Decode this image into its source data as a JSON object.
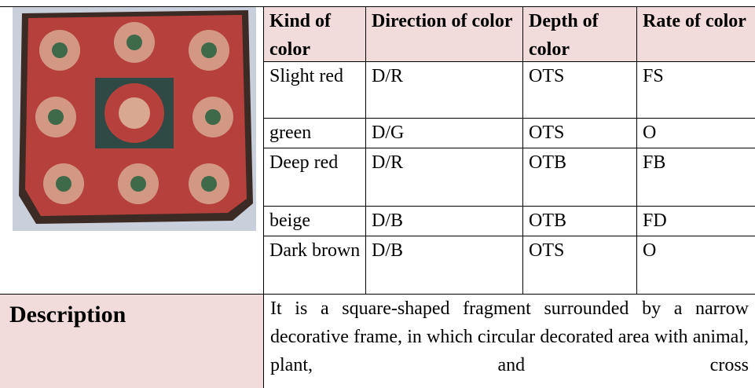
{
  "table": {
    "header": [
      "Kind of color",
      "Direction of color",
      "Depth of color",
      "Rate of color"
    ],
    "rows": [
      [
        "Slight red",
        "D/R",
        "OTS",
        "FS"
      ],
      [
        "green",
        "D/G",
        "OTS",
        "O"
      ],
      [
        "Deep red",
        "D/R",
        "OTB",
        "FB"
      ],
      [
        "beige",
        "D/B",
        "OTB",
        "FD"
      ],
      [
        "Dark brown",
        "D/B",
        "OTS",
        "O"
      ]
    ]
  },
  "description": {
    "label": "Description",
    "text": "It is a square-shaped fragment surrounded by a narrow decorative frame, in which circular decorated area with animal, plant, and cross"
  }
}
